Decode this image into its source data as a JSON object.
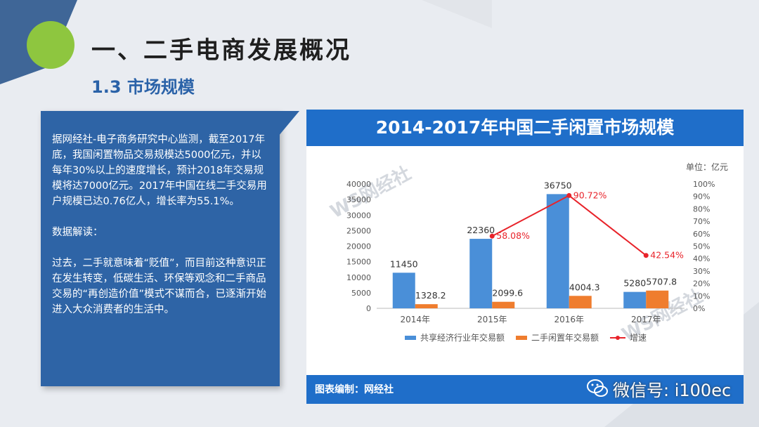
{
  "page": {
    "title": "一、二手电商发展概况",
    "subtitle": "1.3 市场规模"
  },
  "textbox": {
    "body": "据网经社-电子商务研究中心监测，截至2017年底，我国闲置物品交易规模达5000亿元，并以每年30%以上的速度增长，预计2018年交易规模将达7000亿元。2017年中国在线二手交易用户规模已达0.76亿人，增长率为55.1%。\n\n数据解读：\n\n过去，二手就意味着“贬值”，而目前这种意识正在发生转变，低碳生活、环保等观念和二手商品交易的“再创造价值”模式不谋而合，已逐渐开始进入大众消费者的生活中。"
  },
  "chart_panel": {
    "header": "2014-2017年中国二手闲置市场规模",
    "unit": "单位：亿元",
    "credit": "图表编制：网经社",
    "wechat": "微信号: i100ec",
    "watermark": "WS网经社"
  },
  "colors": {
    "header_blue": "#1f6ec9",
    "textbox_blue": "#2e64a6",
    "bar_blue": "#4a8fd8",
    "bar_orange": "#ef7d2e",
    "line_red": "#e8232a",
    "title_dark": "#1f1f1f",
    "subtitle_blue": "#2a62a8"
  },
  "chart_data": {
    "type": "bar",
    "categories": [
      "2014年",
      "2015年",
      "2016年",
      "2017年"
    ],
    "series": [
      {
        "name": "共享经济行业年交易额",
        "type": "bar",
        "color": "#4a8fd8",
        "values": [
          11450,
          22360,
          36750,
          5280
        ],
        "labels": [
          "11450",
          "22360",
          "36750",
          "5280"
        ]
      },
      {
        "name": "二手闲置年交易额",
        "type": "bar",
        "color": "#ef7d2e",
        "values": [
          1328.2,
          2099.6,
          4004.3,
          5707.8
        ],
        "labels": [
          "1328.2",
          "2099.6",
          "4004.3",
          "5707.8"
        ]
      },
      {
        "name": "增速",
        "type": "line",
        "axis": "right",
        "color": "#e8232a",
        "values": [
          null,
          58.08,
          90.72,
          42.54
        ],
        "labels": [
          "",
          "58.08%",
          "90.72%",
          "42.54%"
        ]
      }
    ],
    "y_left": {
      "min": 0,
      "max": 40000,
      "ticks": [
        "0",
        "5000",
        "10000",
        "15000",
        "20000",
        "25000",
        "30000",
        "35000",
        "40000"
      ]
    },
    "y_right": {
      "min": 0,
      "max": 100,
      "ticks": [
        "0%",
        "10%",
        "20%",
        "30%",
        "40%",
        "50%",
        "60%",
        "70%",
        "80%",
        "90%",
        "100%"
      ]
    },
    "grid": false,
    "legend": "bottom"
  }
}
